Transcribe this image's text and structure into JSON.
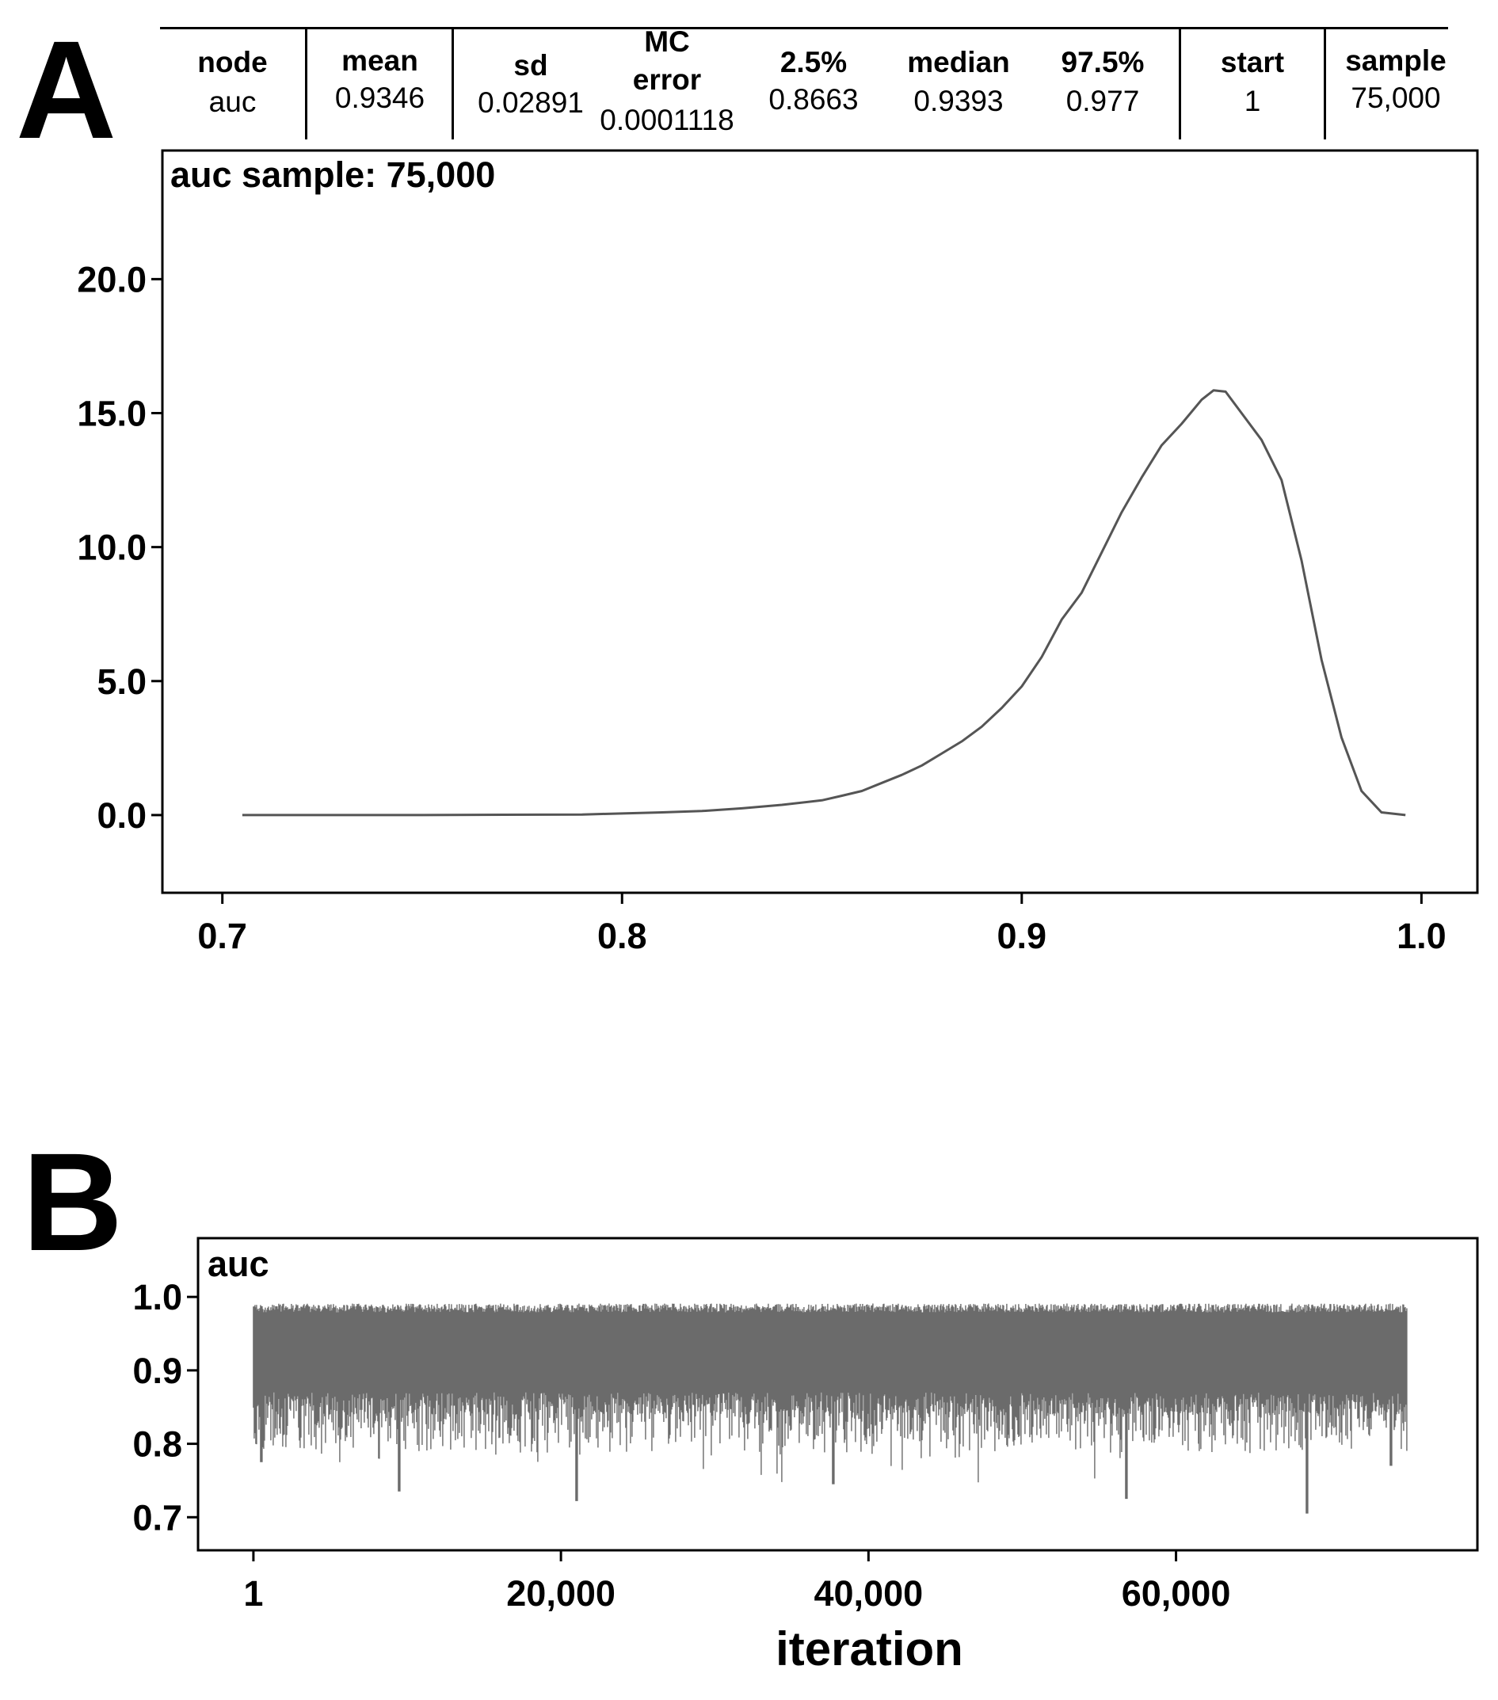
{
  "panels": {
    "a_label": "A",
    "b_label": "B"
  },
  "stats_table": {
    "columns": [
      {
        "header": "node",
        "value": "auc"
      },
      {
        "header": "mean",
        "value": "0.9346"
      },
      {
        "header": "sd",
        "value": "0.02891"
      },
      {
        "header": "MC error",
        "header_lines": [
          "MC",
          "error"
        ],
        "value": "0.0001118"
      },
      {
        "header": "2.5%",
        "value": "0.8663"
      },
      {
        "header": "median",
        "value": "0.9393"
      },
      {
        "header": "97.5%",
        "value": "0.977"
      },
      {
        "header": "start",
        "value": "1"
      },
      {
        "header": "sample",
        "value": "75,000"
      }
    ]
  },
  "chart_data": [
    {
      "type": "line",
      "title": "auc sample: 75,000",
      "xlabel": "",
      "ylabel": "",
      "xlim": [
        0.685,
        1.014
      ],
      "ylim": [
        -2.9,
        24.8
      ],
      "x_ticks": [
        0.7,
        0.8,
        0.9,
        1.0
      ],
      "x_tick_labels": [
        "0.7",
        "0.8",
        "0.9",
        "1.0"
      ],
      "y_ticks": [
        0,
        5,
        10,
        15,
        20
      ],
      "y_tick_labels": [
        "0.0",
        "5.0",
        "10.0",
        "15.0",
        "20.0"
      ],
      "grid": false,
      "line_color": "#555555",
      "x": [
        0.705,
        0.75,
        0.79,
        0.795,
        0.8,
        0.81,
        0.82,
        0.83,
        0.84,
        0.85,
        0.855,
        0.86,
        0.865,
        0.87,
        0.875,
        0.88,
        0.885,
        0.89,
        0.895,
        0.9,
        0.905,
        0.91,
        0.915,
        0.92,
        0.925,
        0.93,
        0.935,
        0.94,
        0.945,
        0.948,
        0.951,
        0.955,
        0.96,
        0.965,
        0.97,
        0.975,
        0.98,
        0.985,
        0.99,
        0.996
      ],
      "y": [
        0.0,
        0.0,
        0.02,
        0.04,
        0.06,
        0.1,
        0.15,
        0.25,
        0.38,
        0.55,
        0.72,
        0.9,
        1.2,
        1.5,
        1.85,
        2.3,
        2.75,
        3.3,
        4.0,
        4.8,
        5.9,
        7.3,
        8.3,
        9.8,
        11.3,
        12.6,
        13.8,
        14.6,
        15.5,
        15.85,
        15.8,
        15.0,
        14.0,
        12.5,
        9.5,
        5.8,
        2.9,
        0.9,
        0.1,
        0.0
      ]
    },
    {
      "type": "trace",
      "title": "auc",
      "xlabel": "iteration",
      "ylabel": "",
      "xlim": [
        -3600,
        79600
      ],
      "ylim": [
        0.655,
        1.08
      ],
      "x_ticks": [
        1,
        20000,
        40000,
        60000
      ],
      "x_tick_labels": [
        "1",
        "20,000",
        "40,000",
        "60,000"
      ],
      "y_ticks": [
        0.7,
        0.8,
        0.9,
        1.0
      ],
      "y_tick_labels": [
        "0.7",
        "0.8",
        "0.9",
        "1.0"
      ],
      "grid": false,
      "line_color": "#6b6b6b",
      "iterations": [
        1,
        75000
      ],
      "band_upper_typical": 0.985,
      "band_lower_typical": 0.855,
      "notable_minima": [
        {
          "x": 500,
          "y": 0.775
        },
        {
          "x": 9500,
          "y": 0.735
        },
        {
          "x": 21000,
          "y": 0.722
        },
        {
          "x": 37700,
          "y": 0.745
        },
        {
          "x": 56800,
          "y": 0.725
        },
        {
          "x": 68500,
          "y": 0.705
        },
        {
          "x": 74000,
          "y": 0.77
        }
      ]
    }
  ]
}
